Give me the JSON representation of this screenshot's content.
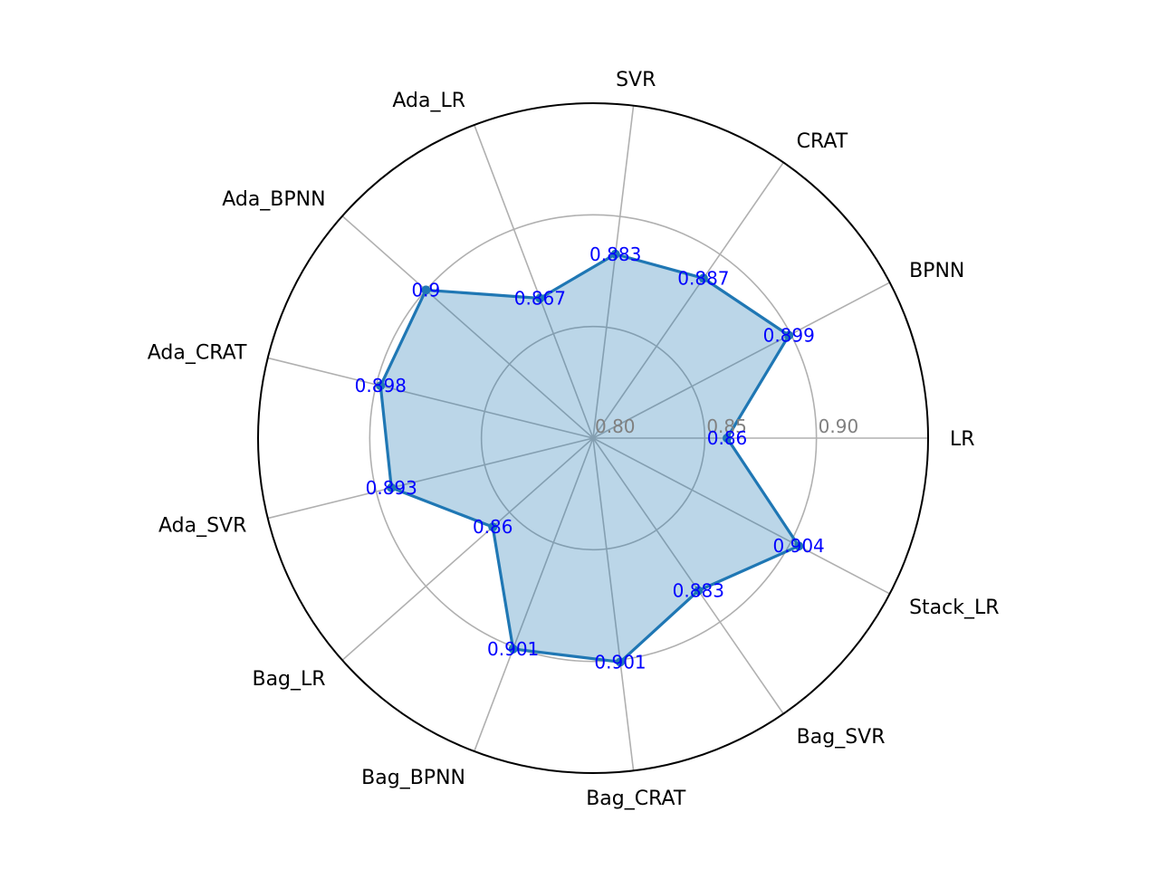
{
  "chart_data": {
    "type": "radar",
    "title": "",
    "categories": [
      "LR",
      "BPNN",
      "CRAT",
      "SVR",
      "Ada_LR",
      "Ada_BPNN",
      "Ada_CRAT",
      "Ada_SVR",
      "Bag_LR",
      "Bag_BPNN",
      "Bag_CRAT",
      "Bag_SVR",
      "Stack_LR"
    ],
    "values": [
      0.86,
      0.899,
      0.887,
      0.883,
      0.867,
      0.9,
      0.898,
      0.893,
      0.86,
      0.901,
      0.901,
      0.883,
      0.904
    ],
    "value_labels": [
      "0.86",
      "0.899",
      "0.887",
      "0.883",
      "0.867",
      "0.9",
      "0.898",
      "0.893",
      "0.86",
      "0.901",
      "0.901",
      "0.883",
      "0.904"
    ],
    "rlim": [
      0.8,
      0.95
    ],
    "rticks": [
      0.8,
      0.85,
      0.9
    ],
    "rtick_labels": [
      "0.80",
      "0.85",
      "0.90"
    ],
    "grid": true,
    "legend": "none",
    "colors": {
      "line": "#1f77b4",
      "fill": "#1f77b4",
      "value_label": "#0000ff",
      "grid": "#b0b0b0",
      "outer_ring": "#000000",
      "tick_label": "#808080"
    }
  }
}
